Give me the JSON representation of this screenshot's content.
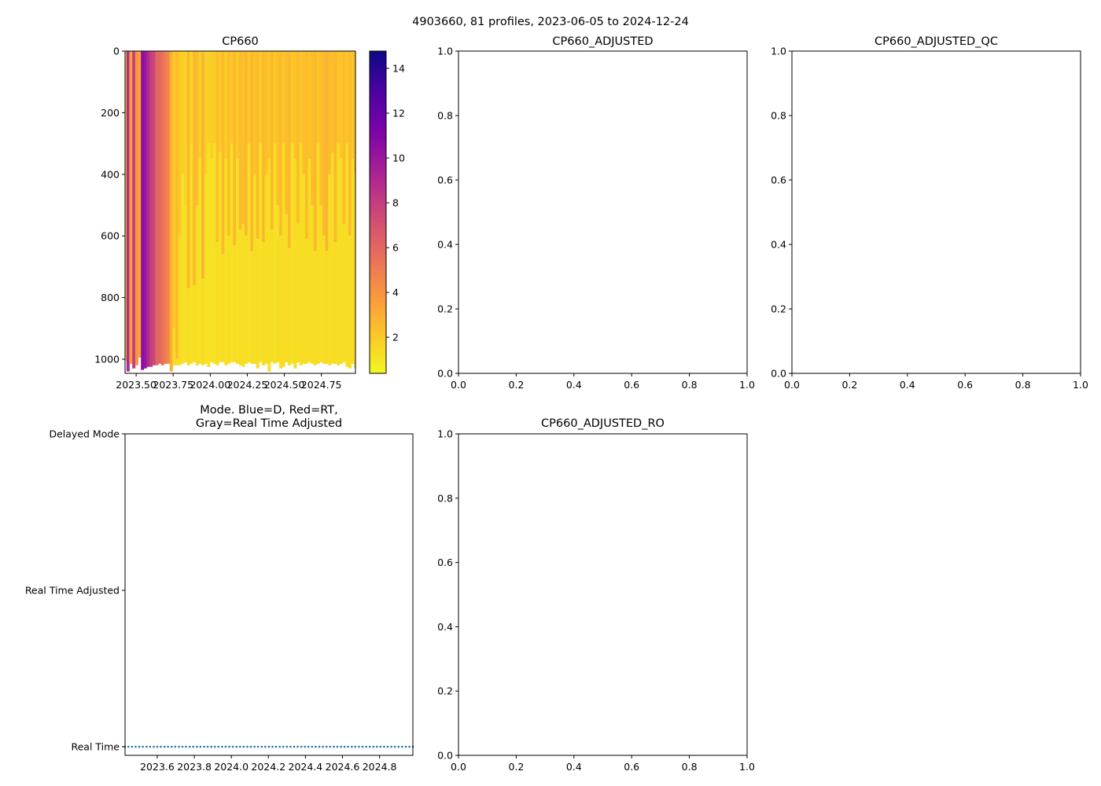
{
  "figure_title": "4903660, 81 profiles, 2023-06-05 to 2024-12-24",
  "chart_data": [
    {
      "id": "cp660",
      "type": "heatmap",
      "title": "CP660",
      "xlabel": "",
      "ylabel": "",
      "xlim": [
        2023.425,
        2024.98
      ],
      "ylim": [
        1046,
        0
      ],
      "xticks": [
        2023.5,
        2023.75,
        2024.0,
        2024.25,
        2024.5,
        2024.75
      ],
      "xtick_labels": [
        "2023.50",
        "2023.75",
        "2024.00",
        "2024.25",
        "2024.50",
        "2024.75"
      ],
      "yticks": [
        0,
        200,
        400,
        600,
        800,
        1000
      ],
      "ytick_labels": [
        "0",
        "200",
        "400",
        "600",
        "800",
        "1000"
      ],
      "colormap": "plasma_r",
      "colorbar": {
        "range": [
          0.39,
          14.77
        ],
        "ticks": [
          2,
          4,
          6,
          8,
          10,
          12,
          14
        ],
        "tick_labels": [
          "2",
          "4",
          "6",
          "8",
          "10",
          "12",
          "14"
        ]
      },
      "profile_times": [
        2023.425,
        2023.444,
        2023.464,
        2023.483,
        2023.503,
        2023.522,
        2023.542,
        2023.561,
        2023.581,
        2023.6,
        2023.619,
        2023.639,
        2023.658,
        2023.678,
        2023.697,
        2023.717,
        2023.736,
        2023.755,
        2023.775,
        2023.794,
        2023.814,
        2023.833,
        2023.853,
        2023.872,
        2023.892,
        2023.911,
        2023.93,
        2023.95,
        2023.969,
        2023.989,
        2024.008,
        2024.028,
        2024.047,
        2024.066,
        2024.086,
        2024.105,
        2024.125,
        2024.144,
        2024.164,
        2024.183,
        2024.203,
        2024.222,
        2024.241,
        2024.261,
        2024.28,
        2024.3,
        2024.319,
        2024.339,
        2024.358,
        2024.378,
        2024.397,
        2024.416,
        2024.436,
        2024.455,
        2024.475,
        2024.494,
        2024.514,
        2024.533,
        2024.553,
        2024.572,
        2024.592,
        2024.611,
        2024.63,
        2024.65,
        2024.669,
        2024.689,
        2024.708,
        2024.728,
        2024.747,
        2024.767,
        2024.786,
        2024.805,
        2024.825,
        2024.844,
        2024.864,
        2024.883,
        2024.903,
        2024.922,
        2024.942,
        2024.961,
        2024.98
      ],
      "upper_values": [
        1.5,
        9,
        3.5,
        8,
        4,
        3.5,
        10.5,
        10,
        9,
        8,
        7.5,
        6,
        6,
        5.5,
        5,
        4.5,
        3,
        2,
        2.5,
        2,
        1.8,
        1.6,
        2.6,
        1.5,
        2.6,
        2.4,
        1.8,
        2.8,
        1.8,
        1.7,
        1.8,
        1.9,
        2.3,
        2,
        2.5,
        1.9,
        2.4,
        2,
        2.6,
        1.9,
        2.5,
        2.3,
        2.7,
        2,
        2.6,
        2.2,
        2.5,
        2,
        2.6,
        2.3,
        2.1,
        2.6,
        2,
        2.3,
        2.5,
        2.1,
        2.4,
        2.6,
        2,
        2.2,
        2.5,
        2.1,
        2.3,
        2.5,
        2.2,
        2.4,
        2.6,
        2.1,
        2.3,
        2.6,
        2.8,
        2.4,
        2.3,
        2.6,
        2.2,
        2.1,
        2.4,
        2.2,
        2.5,
        2.1,
        2.3
      ],
      "lower_values": [
        1.4,
        8.6,
        3.3,
        7.6,
        3.8,
        3.3,
        10,
        9.5,
        8.6,
        7.6,
        7.1,
        5.7,
        5.7,
        5.2,
        4.8,
        4.3,
        2.9,
        1.3,
        1.3,
        1.3,
        1.2,
        1.2,
        1.3,
        1.2,
        1.3,
        1.3,
        1.2,
        1.3,
        1.2,
        1.2,
        1.2,
        1.2,
        1.3,
        1.2,
        1.3,
        1.2,
        1.3,
        1.2,
        1.3,
        1.2,
        1.3,
        1.3,
        1.3,
        1.2,
        1.3,
        1.3,
        1.3,
        1.2,
        1.3,
        1.3,
        1.3,
        1.3,
        1.2,
        1.3,
        1.3,
        1.3,
        1.3,
        1.3,
        1.2,
        1.3,
        1.3,
        1.3,
        1.3,
        1.3,
        1.3,
        1.3,
        1.3,
        1.3,
        1.3,
        1.3,
        1.4,
        1.3,
        1.3,
        1.4,
        1.3,
        1.3,
        1.3,
        1.3,
        1.3,
        1.3,
        1.3
      ],
      "transition_depth": [
        1050,
        1050,
        1050,
        1050,
        1050,
        1050,
        1050,
        1050,
        1050,
        1050,
        1050,
        1050,
        1050,
        1050,
        1050,
        1050,
        1050,
        900,
        1000,
        600,
        400,
        500,
        770,
        300,
        760,
        500,
        350,
        740,
        400,
        300,
        350,
        300,
        620,
        330,
        660,
        350,
        600,
        300,
        630,
        350,
        580,
        560,
        600,
        300,
        650,
        400,
        610,
        300,
        620,
        400,
        350,
        580,
        300,
        500,
        600,
        300,
        530,
        640,
        300,
        350,
        560,
        300,
        400,
        610,
        350,
        500,
        650,
        300,
        500,
        600,
        650,
        400,
        330,
        620,
        300,
        350,
        560,
        300,
        600,
        350,
        400
      ],
      "max_depth": [
        1005,
        1040,
        1015,
        1030,
        1020,
        995,
        1035,
        1030,
        1025,
        1025,
        1020,
        1020,
        1015,
        1020,
        1015,
        1015,
        1040,
        1020,
        1020,
        1020,
        1015,
        1010,
        1020,
        1015,
        1010,
        1020,
        1015,
        1020,
        1015,
        1025,
        1010,
        1015,
        1020,
        1010,
        1010,
        1020,
        1015,
        1010,
        1010,
        1015,
        1020,
        1025,
        1015,
        1010,
        1015,
        1015,
        1030,
        1010,
        1020,
        1015,
        1040,
        1010,
        1015,
        1010,
        1030,
        1025,
        1010,
        1020,
        1015,
        1030,
        1010,
        1020,
        1015,
        1015,
        1010,
        1015,
        1020,
        1015,
        1010,
        1015,
        1015,
        1020,
        1015,
        1015,
        1020,
        1015,
        1010,
        1025,
        1030,
        1015,
        1030
      ]
    },
    {
      "id": "cp660-adjusted",
      "type": "line",
      "title": "CP660_ADJUSTED",
      "series": [],
      "xlim": [
        0,
        1
      ],
      "ylim": [
        0,
        1
      ],
      "xticks": [
        0,
        0.2,
        0.4,
        0.6,
        0.8,
        1.0
      ],
      "tick_labels": [
        "0.0",
        "0.2",
        "0.4",
        "0.6",
        "0.8",
        "1.0"
      ]
    },
    {
      "id": "cp660-adjusted-qc",
      "type": "line",
      "title": "CP660_ADJUSTED_QC",
      "series": [],
      "xlim": [
        0,
        1
      ],
      "ylim": [
        0,
        1
      ],
      "xticks": [
        0,
        0.2,
        0.4,
        0.6,
        0.8,
        1.0
      ],
      "tick_labels": [
        "0.0",
        "0.2",
        "0.4",
        "0.6",
        "0.8",
        "1.0"
      ]
    },
    {
      "id": "mode",
      "type": "scatter",
      "title_line1": "Mode. Blue=D, Red=RT,",
      "title_line2": "Gray=Real Time Adjusted",
      "xlim": [
        2023.426,
        2024.98
      ],
      "ylim": [
        -0.055,
        2
      ],
      "xticks": [
        2023.6,
        2023.8,
        2024.0,
        2024.2,
        2024.4,
        2024.6,
        2024.8
      ],
      "xtick_labels": [
        "2023.6",
        "2023.8",
        "2024.0",
        "2024.2",
        "2024.4",
        "2024.6",
        "2024.8"
      ],
      "yticks": [
        0,
        1,
        2
      ],
      "ytick_labels": [
        "Real Time",
        "Real Time Adjusted",
        "Delayed Mode"
      ],
      "point_color": "#1f77b4",
      "mode_value": 0
    },
    {
      "id": "cp660-adjusted-ro",
      "type": "line",
      "title": "CP660_ADJUSTED_RO",
      "series": [],
      "xlim": [
        0,
        1
      ],
      "ylim": [
        0,
        1
      ],
      "xticks": [
        0,
        0.2,
        0.4,
        0.6,
        0.8,
        1.0
      ],
      "tick_labels": [
        "0.0",
        "0.2",
        "0.4",
        "0.6",
        "0.8",
        "1.0"
      ]
    }
  ]
}
